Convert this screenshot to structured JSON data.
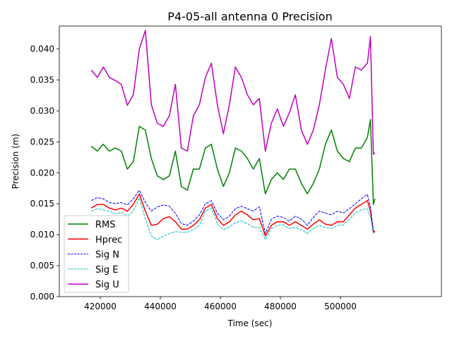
{
  "chart_data": {
    "type": "line",
    "title": "P4-05-all antenna 0 Precision",
    "xlabel": "Time (sec)",
    "ylabel": "Precision (m)",
    "xlim": [
      406350,
      533650
    ],
    "ylim": [
      0,
      0.0437
    ],
    "xticks": [
      420000,
      440000,
      460000,
      480000,
      500000
    ],
    "xtick_labels": [
      "420000",
      "440000",
      "460000",
      "480000",
      "500000"
    ],
    "yticks": [
      0,
      0.005,
      0.01,
      0.015,
      0.02,
      0.025,
      0.03,
      0.035,
      0.04
    ],
    "ytick_labels": [
      "0.000",
      "0.005",
      "0.010",
      "0.015",
      "0.020",
      "0.025",
      "0.030",
      "0.035",
      "0.040"
    ],
    "legend_position": "lower-left",
    "grid": false,
    "x": [
      417000,
      419000,
      421000,
      423000,
      425000,
      427000,
      429000,
      431000,
      433000,
      435000,
      437000,
      439000,
      441000,
      443000,
      445000,
      447000,
      449000,
      451000,
      453000,
      455000,
      457000,
      459000,
      461000,
      463000,
      465000,
      467000,
      469000,
      471000,
      473000,
      475000,
      477000,
      479000,
      481000,
      483000,
      485000,
      487000,
      489000,
      491000,
      493000,
      495000,
      497000,
      499000,
      501000,
      503000,
      505000,
      507000,
      509000,
      510000,
      511000,
      511500
    ],
    "series": [
      {
        "name": "RMS",
        "color": "#008000",
        "dash": false,
        "values": [
          0.0243,
          0.0235,
          0.0246,
          0.0235,
          0.024,
          0.0235,
          0.0206,
          0.0218,
          0.0275,
          0.0269,
          0.0223,
          0.0195,
          0.0189,
          0.0195,
          0.0235,
          0.0178,
          0.0172,
          0.0206,
          0.0206,
          0.024,
          0.0246,
          0.0206,
          0.0178,
          0.02,
          0.024,
          0.0235,
          0.0223,
          0.0206,
          0.0223,
          0.0166,
          0.0189,
          0.02,
          0.0189,
          0.0206,
          0.0206,
          0.0183,
          0.0166,
          0.0183,
          0.0206,
          0.0246,
          0.0269,
          0.0235,
          0.0223,
          0.0218,
          0.024,
          0.024,
          0.0257,
          0.0286,
          0.0149,
          0.0158
        ]
      },
      {
        "name": "Hprec",
        "color": "#ff0000",
        "dash": false,
        "values": [
          0.0143,
          0.0149,
          0.0149,
          0.0143,
          0.014,
          0.0143,
          0.0138,
          0.0149,
          0.0166,
          0.0138,
          0.0115,
          0.0117,
          0.0126,
          0.0129,
          0.0121,
          0.0109,
          0.0109,
          0.0115,
          0.0124,
          0.0143,
          0.0149,
          0.0126,
          0.0115,
          0.0121,
          0.0132,
          0.0138,
          0.0132,
          0.0124,
          0.0126,
          0.0098,
          0.0115,
          0.0121,
          0.0121,
          0.0115,
          0.0121,
          0.0115,
          0.0109,
          0.0117,
          0.0124,
          0.0117,
          0.0115,
          0.0121,
          0.0121,
          0.0132,
          0.0143,
          0.0149,
          0.0155,
          0.0138,
          0.0104,
          0.0106
        ]
      },
      {
        "name": "Sig N",
        "color": "#0000ff",
        "dash": true,
        "values": [
          0.0155,
          0.016,
          0.0158,
          0.0152,
          0.015,
          0.0152,
          0.0148,
          0.0158,
          0.0172,
          0.0152,
          0.0138,
          0.0145,
          0.0148,
          0.0146,
          0.0135,
          0.0118,
          0.0115,
          0.0122,
          0.0132,
          0.015,
          0.0155,
          0.0135,
          0.0124,
          0.013,
          0.0142,
          0.0146,
          0.0142,
          0.0138,
          0.0145,
          0.0102,
          0.0125,
          0.013,
          0.0128,
          0.0122,
          0.013,
          0.0125,
          0.0115,
          0.0128,
          0.0138,
          0.0135,
          0.0132,
          0.0138,
          0.0135,
          0.0142,
          0.015,
          0.0158,
          0.0165,
          0.0145,
          0.0106,
          0.0108
        ]
      },
      {
        "name": "Sig E",
        "color": "#00bfbf",
        "dash": true,
        "values": [
          0.0138,
          0.0142,
          0.014,
          0.0138,
          0.0134,
          0.0136,
          0.013,
          0.0138,
          0.016,
          0.0125,
          0.0098,
          0.0092,
          0.0098,
          0.0102,
          0.0105,
          0.0104,
          0.0104,
          0.0108,
          0.0115,
          0.0138,
          0.0143,
          0.0118,
          0.0108,
          0.0112,
          0.012,
          0.0122,
          0.0118,
          0.0112,
          0.0112,
          0.0092,
          0.011,
          0.0115,
          0.0116,
          0.011,
          0.0112,
          0.0108,
          0.0102,
          0.011,
          0.0115,
          0.0112,
          0.011,
          0.0115,
          0.0116,
          0.0125,
          0.0135,
          0.014,
          0.0142,
          0.013,
          0.0102,
          0.0104
        ]
      },
      {
        "name": "Sig U",
        "color": "#bf00bf",
        "dash": false,
        "values": [
          0.0366,
          0.0354,
          0.0371,
          0.0354,
          0.0349,
          0.0343,
          0.0309,
          0.0326,
          0.04,
          0.043,
          0.031,
          0.028,
          0.0275,
          0.0292,
          0.0343,
          0.024,
          0.0235,
          0.0292,
          0.031,
          0.0354,
          0.0377,
          0.031,
          0.0263,
          0.031,
          0.0371,
          0.0354,
          0.0326,
          0.031,
          0.032,
          0.0235,
          0.028,
          0.0303,
          0.0275,
          0.0297,
          0.0326,
          0.0269,
          0.0246,
          0.0269,
          0.031,
          0.0366,
          0.0417,
          0.0354,
          0.0343,
          0.032,
          0.0371,
          0.0366,
          0.0377,
          0.042,
          0.023,
          0.0232
        ]
      }
    ]
  }
}
